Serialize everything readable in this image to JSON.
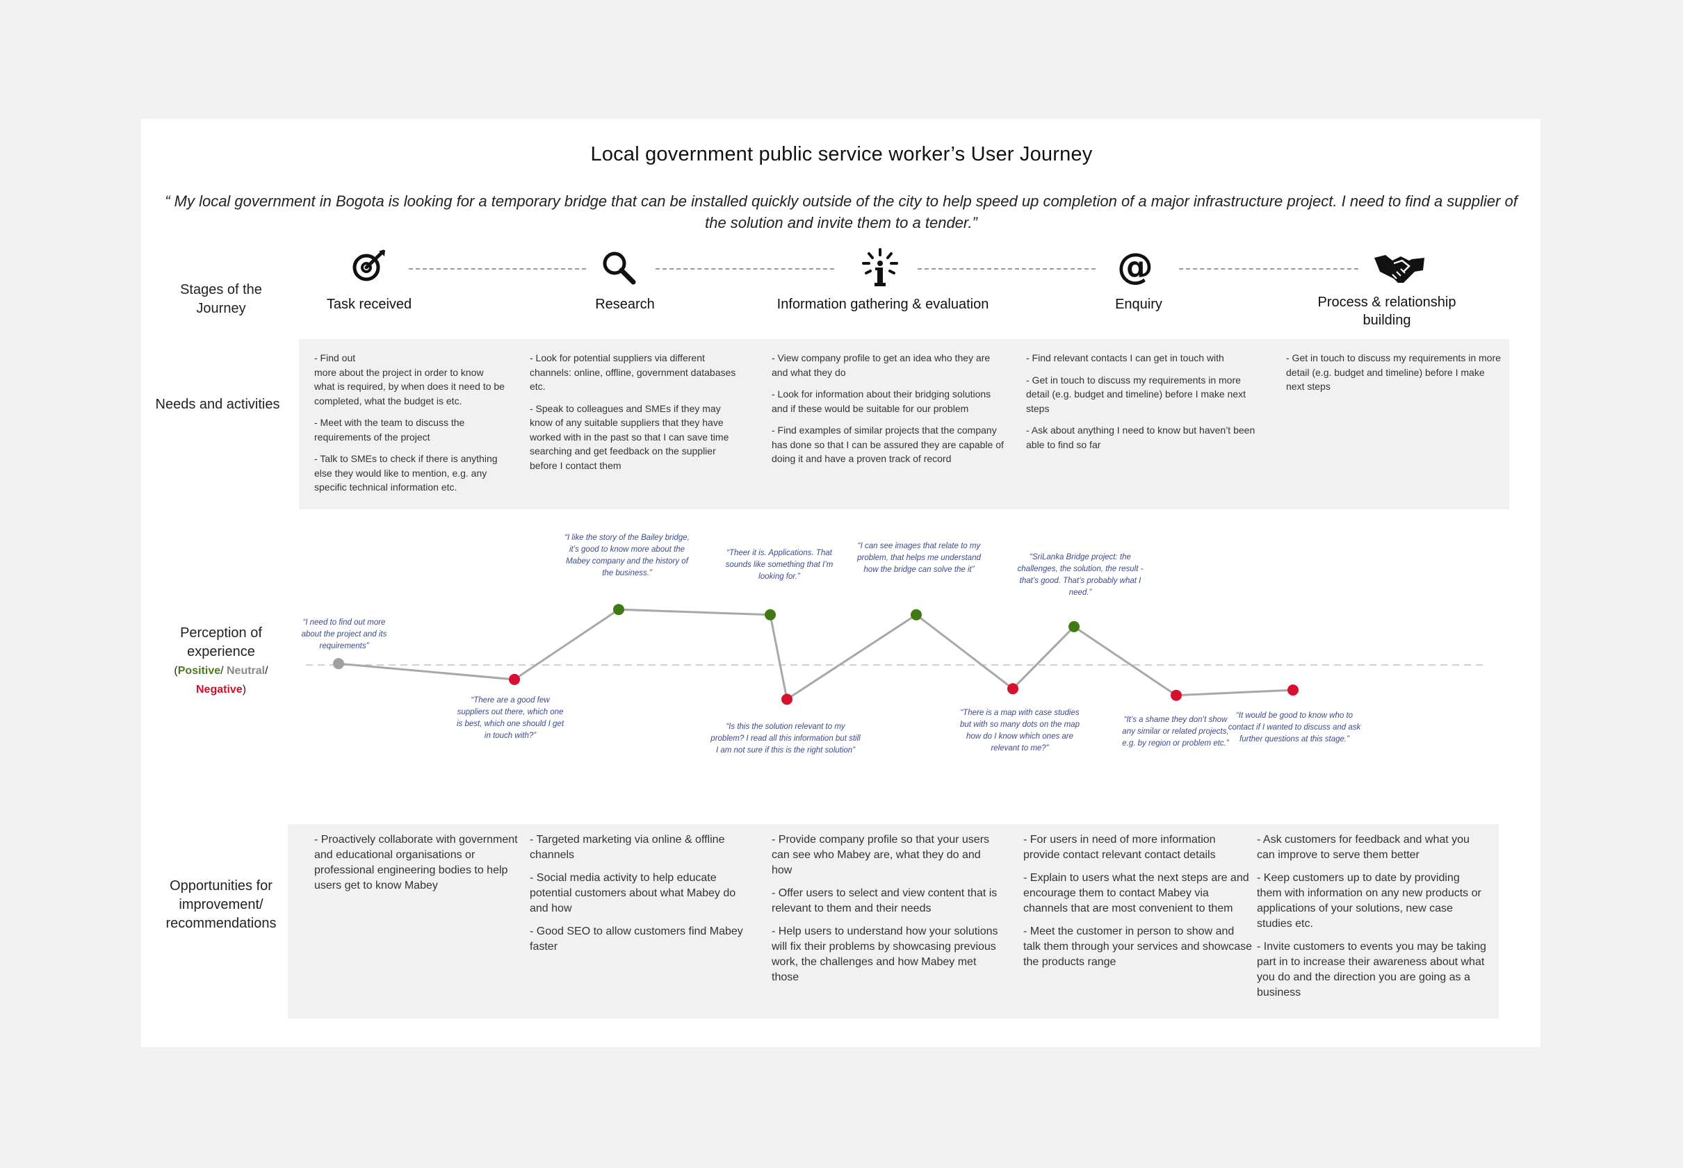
{
  "title": "Local government public service worker’s User Journey",
  "quote": "“ My local government in Bogota is looking for a temporary bridge that can be installed quickly outside of the city to help speed up completion of a major infrastructure project. I need to find a supplier of the solution and invite them to a tender.”",
  "row_labels": {
    "stages": "Stages of the Journey",
    "needs": "Needs and activities",
    "perception_1": "Perception of",
    "perception_2": "experience",
    "perception_paren_open": "(",
    "positive": "Positive",
    "slash1": "/ ",
    "neutral": "Neutral",
    "slash2": "/",
    "negative": "Negative",
    "perception_paren_close": ")",
    "opps_1": "Opportunities for",
    "opps_2": "improvement/",
    "opps_3": "recommendations"
  },
  "stages": [
    {
      "name": "Task received",
      "icon": "target-pen-icon"
    },
    {
      "name": "Research",
      "icon": "magnifier-icon"
    },
    {
      "name": "Information gathering & evaluation",
      "icon": "info-icon"
    },
    {
      "name": "Enquiry",
      "icon": "at-sign-icon"
    },
    {
      "name": "Process & relationship building",
      "icon": "handshake-icon"
    }
  ],
  "needs": [
    [
      "- Find out\nmore about the project in order to know what is required, by when does it need to be completed, what the budget is etc.",
      "- Meet with the team to discuss the requirements of the project",
      "- Talk to SMEs to check if there is anything else they would like to mention, e.g. any specific technical information etc."
    ],
    [
      "- Look for potential suppliers via different channels: online, offline, government databases etc.",
      "- Speak to colleagues and SMEs if they may know of any suitable suppliers that they have worked with in the past so that I can save time searching and get feedback on the supplier before I contact them"
    ],
    [
      "- View company profile to get an idea who they are and what they do",
      "- Look for information about their bridging solutions and if these would be suitable for our problem",
      "- Find examples of similar projects that the company has done so that I can be assured they are capable of doing it and have a proven track of record"
    ],
    [
      "- Find relevant contacts I can get in touch with",
      "- Get in touch to discuss my requirements in more detail (e.g. budget and timeline) before I make next steps",
      "- Ask about anything I need to know but haven’t been able to find so far"
    ],
    [
      "- Get in touch to discuss my requirements in more detail (e.g. budget and timeline) before I make next steps"
    ]
  ],
  "chart_data": {
    "type": "line",
    "sentiment_levels": [
      "Negative",
      "Neutral",
      "Positive"
    ],
    "points": [
      {
        "sentiment": "Neutral",
        "value": 0.05,
        "quote": "“I need to find out more about the project and its requirements”"
      },
      {
        "sentiment": "Negative",
        "value": -0.55,
        "quote": "“There are a good few suppliers out there, which one is best, which one should I get in touch with?”"
      },
      {
        "sentiment": "Positive",
        "value": 2.1,
        "quote": "“I like the story of the Bailey bridge, it’s good to know more about the Mabey company and the history of the business.”"
      },
      {
        "sentiment": "Positive",
        "value": 1.9,
        "quote": "“Theer it is. Applications. That sounds like something that I’m looking for.”"
      },
      {
        "sentiment": "Negative",
        "value": -1.3,
        "quote": "“Is this the solution relevant to my problem? I read all this information but still I am not sure if this is the right solution”"
      },
      {
        "sentiment": "Positive",
        "value": 1.9,
        "quote": "“I can see images that relate to my problem, that helps me understand how the bridge can solve the it”"
      },
      {
        "sentiment": "Negative",
        "value": -0.9,
        "quote": "“There is a map with case studies but with so many dots on the map how do I know which ones are relevant to me?”"
      },
      {
        "sentiment": "Positive",
        "value": 1.45,
        "quote": "“SriLanka Bridge project: the challenges, the solution, the result - that’s good. That’s probably what I need.”"
      },
      {
        "sentiment": "Negative",
        "value": -1.15,
        "quote": "“It’s a shame they don’t show any similar or related projects, e.g. by region or problem etc.”"
      },
      {
        "sentiment": "Negative",
        "value": -0.95,
        "quote": "“It would be good to know who to contact if I wanted to discuss and ask further questions at this stage.”"
      }
    ],
    "colors": {
      "positive": "#3f7a12",
      "neutral": "#a0a0a0",
      "negative": "#d6102e",
      "line": "#a8a8a8",
      "baseline": "#cfcfcf"
    }
  },
  "opportunities": [
    [
      "- Proactively collaborate with government and educational organisations or professional engineering bodies to help users get to know Mabey"
    ],
    [
      "- Targeted marketing via online & offline channels",
      "- Social media activity to help educate potential customers about what Mabey do and how",
      "- Good SEO to allow customers find Mabey faster"
    ],
    [
      "- Provide company profile so that your users can see who Mabey are, what they do and how",
      "- Offer users to select and view content that is relevant to them and their needs",
      "- Help users to understand how your solutions will fix their problems by showcasing previous work, the challenges and how Mabey met those"
    ],
    [
      "- For users in need of more information provide contact relevant contact details",
      "- Explain to users what the next steps are and encourage them to contact Mabey via channels that are most convenient to them",
      "- Meet the customer in person to show and talk them through your services and showcase the products range"
    ],
    [
      "- Ask customers for feedback and what you can improve to serve them better",
      "- Keep customers up to date by providing them with information on any new products or applications of your solutions, new case studies etc.",
      "- Invite customers to events you may be taking part in to increase their awareness about what you do and the direction you are going as a business"
    ]
  ]
}
